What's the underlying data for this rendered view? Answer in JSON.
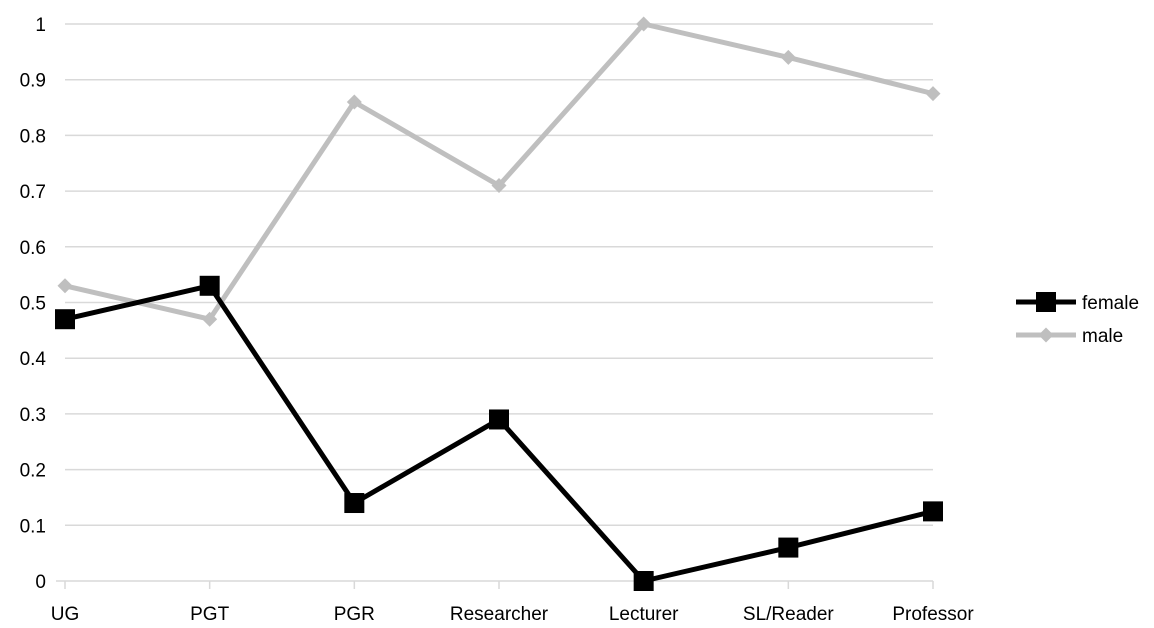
{
  "chart_data": {
    "type": "line",
    "title": "",
    "xlabel": "",
    "ylabel": "",
    "categories": [
      "UG",
      "PGT",
      "PGR",
      "Researcher",
      "Lecturer",
      "SL/Reader",
      "Professor"
    ],
    "ylim": [
      0,
      1
    ],
    "yticks": [
      "0",
      "0.1",
      "0.2",
      "0.3",
      "0.4",
      "0.5",
      "0.6",
      "0.7",
      "0.8",
      "0.9",
      "1"
    ],
    "grid": true,
    "legend_position": "right",
    "series": [
      {
        "name": "female",
        "values": [
          0.47,
          0.53,
          0.14,
          0.29,
          0.0,
          0.06,
          0.125
        ],
        "color": "#000000",
        "marker": "square"
      },
      {
        "name": "male",
        "values": [
          0.53,
          0.47,
          0.86,
          0.71,
          1.0,
          0.94,
          0.875
        ],
        "color": "#bfbfbf",
        "marker": "diamond"
      }
    ]
  }
}
